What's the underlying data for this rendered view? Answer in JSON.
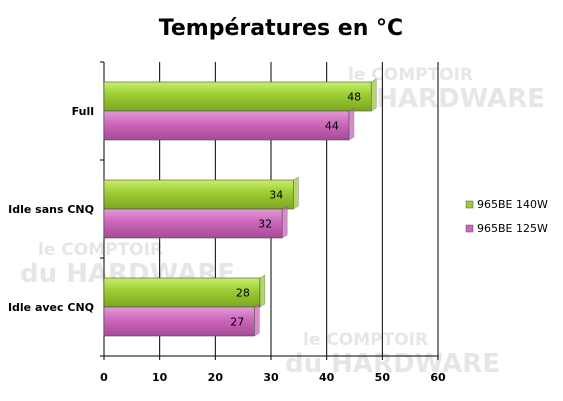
{
  "chart_data": {
    "type": "bar",
    "orientation": "horizontal",
    "title": "Températures en °C",
    "categories": [
      "Full",
      "Idle sans CNQ",
      "Idle avec CNQ"
    ],
    "series": [
      {
        "name": "965BE 140W",
        "values": [
          48,
          34,
          28
        ],
        "color": "#99cc33"
      },
      {
        "name": "965BE 125W",
        "values": [
          44,
          32,
          27
        ],
        "color": "#cc66bb"
      }
    ],
    "xticks": [
      0,
      10,
      20,
      30,
      40,
      50,
      60
    ],
    "xlim": [
      0,
      60
    ],
    "grid": true,
    "data_labels": true,
    "legend_position": "right"
  },
  "watermark": {
    "line1": "le COMPTOIR",
    "line2": "du HARDWARE"
  }
}
